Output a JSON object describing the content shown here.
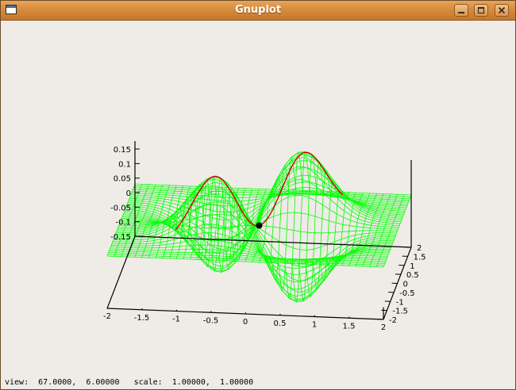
{
  "window": {
    "title": "Gnuplot"
  },
  "status": {
    "view_label": "view:",
    "view_values": "67.0000,  6.00000",
    "scale_label": "scale:",
    "scale_values": "1.00000,  1.00000"
  },
  "colors": {
    "surface": "#00ff00",
    "curve": "#cc0000",
    "axes": "#000000"
  },
  "icons": {
    "app": "window-icon",
    "minimize": "minimize-icon",
    "maximize": "maximize-icon",
    "close": "close-icon"
  },
  "chart_data": {
    "type": "surface",
    "title": "",
    "xlabel": "",
    "ylabel": "",
    "zlabel": "",
    "xlim": [
      -2,
      2
    ],
    "ylim": [
      -2,
      2
    ],
    "zlim": [
      -0.15,
      0.15
    ],
    "x_ticks": [
      "-2",
      "-1.5",
      "-1",
      "-0.5",
      "0",
      "0.5",
      "1",
      "1.5",
      "2"
    ],
    "y_ticks": [
      "-2",
      "-1.5",
      "-1",
      "-0.5",
      "0",
      "0.5",
      "1",
      "1.5",
      "2"
    ],
    "z_ticks": [
      "0.15",
      "0.1",
      "0.05",
      "0",
      "-0.05",
      "-0.1",
      "-0.15"
    ],
    "view": [
      67,
      6
    ],
    "scale": [
      1,
      1
    ]
  }
}
